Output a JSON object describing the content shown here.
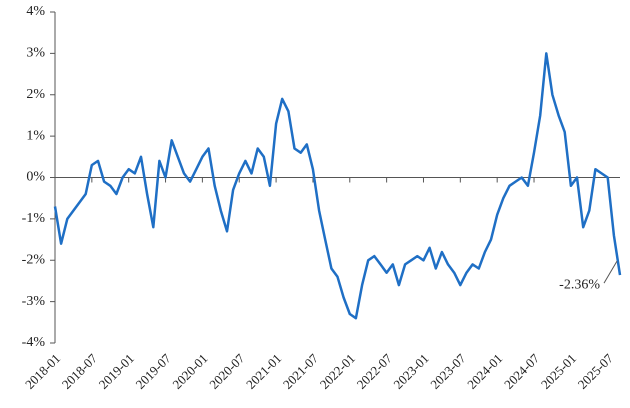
{
  "chart_data": {
    "type": "line",
    "x": [
      "2018-01",
      "2018-02",
      "2018-03",
      "2018-04",
      "2018-05",
      "2018-06",
      "2018-07",
      "2018-08",
      "2018-09",
      "2018-10",
      "2018-11",
      "2018-12",
      "2019-01",
      "2019-02",
      "2019-03",
      "2019-04",
      "2019-05",
      "2019-06",
      "2019-07",
      "2019-08",
      "2019-09",
      "2019-10",
      "2019-11",
      "2019-12",
      "2020-01",
      "2020-02",
      "2020-03",
      "2020-04",
      "2020-05",
      "2020-06",
      "2020-07",
      "2020-08",
      "2020-09",
      "2020-10",
      "2020-11",
      "2020-12",
      "2021-01",
      "2021-02",
      "2021-03",
      "2021-04",
      "2021-05",
      "2021-06",
      "2021-07",
      "2021-08",
      "2021-09",
      "2021-10",
      "2021-11",
      "2021-12",
      "2022-01",
      "2022-02",
      "2022-03",
      "2022-04",
      "2022-05",
      "2022-06",
      "2022-07",
      "2022-08",
      "2022-09",
      "2022-10",
      "2022-11",
      "2022-12",
      "2023-01",
      "2023-02",
      "2023-03",
      "2023-04",
      "2023-05",
      "2023-06",
      "2023-07",
      "2023-08",
      "2023-09",
      "2023-10",
      "2023-11",
      "2023-12",
      "2024-01",
      "2024-02",
      "2024-03",
      "2024-04",
      "2024-05",
      "2024-06",
      "2024-07",
      "2024-08",
      "2024-09",
      "2024-10",
      "2024-11",
      "2024-12",
      "2025-01",
      "2025-02",
      "2025-03",
      "2025-04",
      "2025-05",
      "2025-06",
      "2025-07",
      "2025-08",
      "2025-09"
    ],
    "series": [
      {
        "color": "#1f6fc5",
        "values": [
          -0.7,
          -1.6,
          -1.0,
          -0.8,
          -0.6,
          -0.4,
          0.3,
          0.4,
          -0.1,
          -0.2,
          -0.4,
          0.0,
          0.2,
          0.1,
          0.5,
          -0.4,
          -1.2,
          0.4,
          0.0,
          0.9,
          0.5,
          0.1,
          -0.1,
          0.2,
          0.5,
          0.7,
          -0.2,
          -0.8,
          -1.3,
          -0.3,
          0.1,
          0.4,
          0.1,
          0.7,
          0.5,
          -0.2,
          1.3,
          1.9,
          1.6,
          0.7,
          0.6,
          0.8,
          0.2,
          -0.8,
          -1.5,
          -2.2,
          -2.4,
          -2.9,
          -3.3,
          -3.4,
          -2.6,
          -2.0,
          -1.9,
          -2.1,
          -2.3,
          -2.1,
          -2.6,
          -2.1,
          -2.0,
          -1.9,
          -2.0,
          -1.7,
          -2.2,
          -1.8,
          -2.1,
          -2.3,
          -2.6,
          -2.3,
          -2.1,
          -2.2,
          -1.8,
          -1.5,
          -0.9,
          -0.5,
          -0.2,
          -0.1,
          0.0,
          -0.2,
          0.6,
          1.5,
          3.0,
          2.0,
          1.5,
          1.1,
          -0.2,
          0.0,
          -1.2,
          -0.8,
          0.2,
          0.1,
          0.0,
          -1.4,
          -2.36
        ],
        "value_labels": [
          null,
          null,
          null,
          null,
          null,
          null,
          null,
          null,
          null,
          null,
          null,
          null,
          null,
          null,
          null,
          null,
          null,
          null,
          null,
          null,
          null,
          null,
          null,
          null,
          null,
          null,
          null,
          null,
          null,
          null,
          null,
          null,
          null,
          null,
          null,
          null,
          null,
          null,
          null,
          null,
          null,
          null,
          null,
          null,
          null,
          null,
          null,
          null,
          null,
          null,
          null,
          null,
          null,
          null,
          null,
          null,
          null,
          null,
          null,
          null,
          null,
          null,
          null,
          null,
          null,
          null,
          null,
          null,
          null,
          null,
          null,
          null,
          null,
          null,
          null,
          null,
          null,
          null,
          null,
          null,
          null,
          null,
          null,
          null,
          null,
          null,
          null,
          null,
          null,
          null,
          null,
          null,
          "-2.36%"
        ]
      }
    ],
    "xlim": [
      "2018-01",
      "2025-09"
    ],
    "xticks": [
      "2018-01",
      "2018-07",
      "2019-01",
      "2019-07",
      "2020-01",
      "2020-07",
      "2021-01",
      "2021-07",
      "2022-01",
      "2022-07",
      "2023-01",
      "2023-07",
      "2024-01",
      "2024-07",
      "2025-01",
      "2025-07"
    ],
    "ylim": [
      -4,
      4
    ],
    "yticks": [
      {
        "value": 4,
        "label": "4%"
      },
      {
        "value": 3,
        "label": "3%"
      },
      {
        "value": 2,
        "label": "2%"
      },
      {
        "value": 1,
        "label": "1%"
      },
      {
        "value": 0,
        "label": "0%"
      },
      {
        "value": -1,
        "label": "-1%"
      },
      {
        "value": -2,
        "label": "-2%"
      },
      {
        "value": -3,
        "label": "-3%"
      },
      {
        "value": -4,
        "label": "-4%"
      }
    ]
  }
}
